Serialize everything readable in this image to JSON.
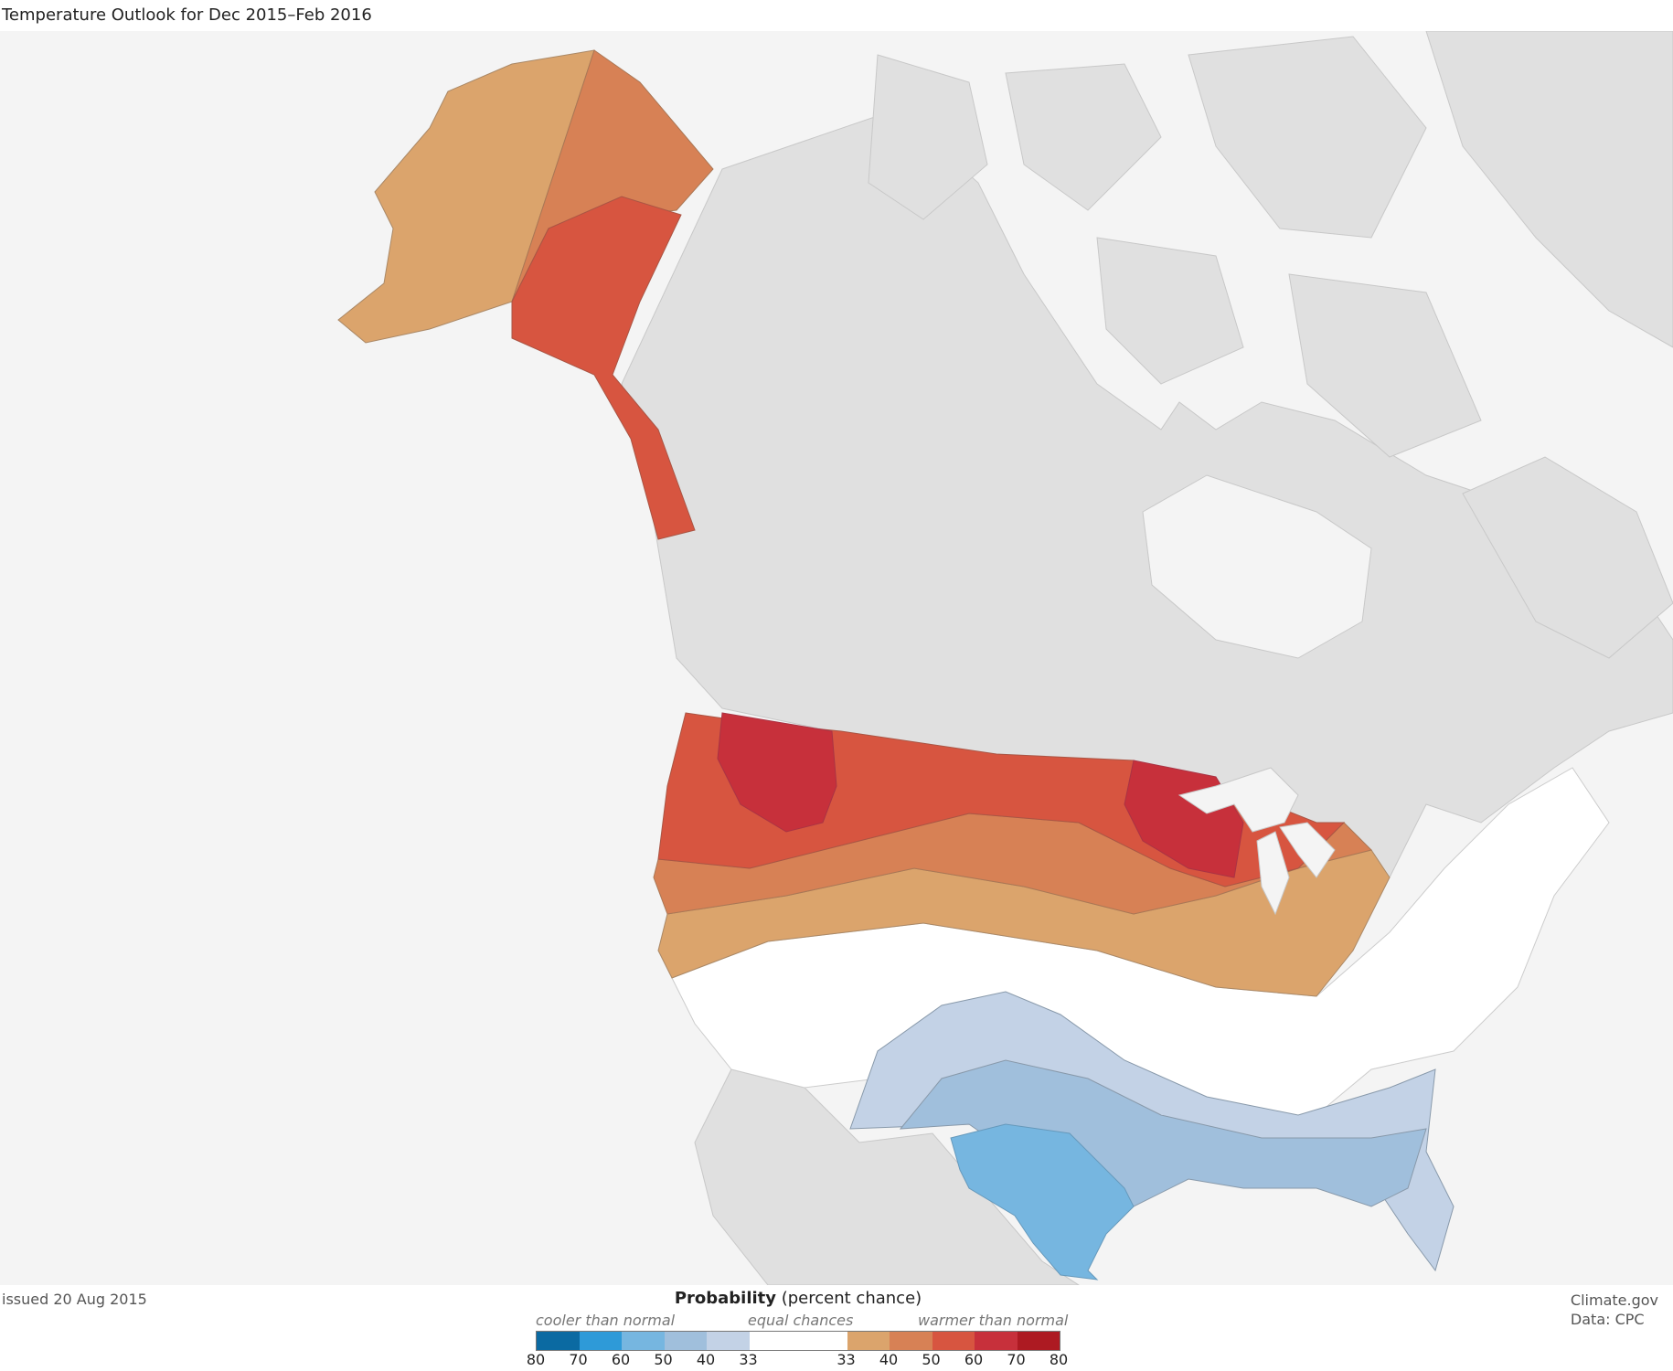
{
  "title": "Temperature Outlook for Dec 2015–Feb 2016",
  "issued": "issued 20 Aug 2015",
  "credit": {
    "source": "Climate.gov",
    "data": "Data: CPC"
  },
  "legend": {
    "title_bold": "Probability",
    "title_rest": " (percent chance)",
    "cooler_label": "cooler than normal",
    "equal_label": "equal chances",
    "warmer_label": "warmer than normal",
    "cool_colors": [
      "#0b6aa2",
      "#2e9ad8",
      "#76b6e0",
      "#a0bfdc",
      "#c3d2e6"
    ],
    "warm_colors": [
      "#dba46c",
      "#d78155",
      "#d75540",
      "#c7303b",
      "#ad1a22"
    ],
    "equal_color": "#ffffff",
    "cool_ticks": [
      "80",
      "70",
      "60",
      "50",
      "40",
      "33"
    ],
    "warm_ticks": [
      "33",
      "40",
      "50",
      "60",
      "70",
      "80"
    ]
  },
  "regions": [
    {
      "name": "Alaska west",
      "category": "warmer than normal",
      "probability": "33-40",
      "color": "#dba46c"
    },
    {
      "name": "Alaska central",
      "category": "warmer than normal",
      "probability": "40-50",
      "color": "#d78155"
    },
    {
      "name": "Alaska east and panhandle",
      "category": "warmer than normal",
      "probability": "50-60",
      "color": "#d75540"
    },
    {
      "name": "Northern tier",
      "category": "warmer than normal",
      "probability": "50-60",
      "color": "#d75540"
    },
    {
      "name": "Pacific Northwest",
      "category": "warmer than normal",
      "probability": "60-70",
      "color": "#c7303b"
    },
    {
      "name": "Upper Midwest",
      "category": "warmer than normal",
      "probability": "60-70",
      "color": "#c7303b"
    },
    {
      "name": "Central-west",
      "category": "equal chances",
      "probability": "",
      "color": "#ffffff"
    },
    {
      "name": "Southern tier",
      "category": "cooler than normal",
      "probability": "33-40",
      "color": "#c3d2e6"
    },
    {
      "name": "Gulf coast",
      "category": "cooler than normal",
      "probability": "40-50",
      "color": "#a0bfdc"
    },
    {
      "name": "Texas",
      "category": "cooler than normal",
      "probability": "50-60",
      "color": "#76b6e0"
    }
  ],
  "colors": {
    "land_other": "#e0e0e0",
    "water": "#f4f4f4",
    "border": "#9a9a9a"
  }
}
